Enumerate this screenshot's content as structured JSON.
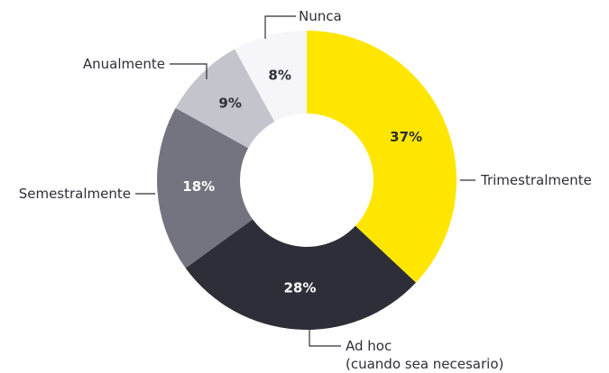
{
  "chart_data": {
    "type": "donut",
    "categories": [
      "Trimestralmente",
      "Ad hoc\n(cuando sea necesario)",
      "Semestralmente",
      "Anualmente",
      "Nunca"
    ],
    "values": [
      37,
      28,
      18,
      9,
      8
    ],
    "value_labels": [
      "37%",
      "28%",
      "18%",
      "9%",
      "8%"
    ],
    "colors": [
      "#ffe600",
      "#2e2e38",
      "#747480",
      "#c4c4cd",
      "#f6f6fa"
    ]
  }
}
